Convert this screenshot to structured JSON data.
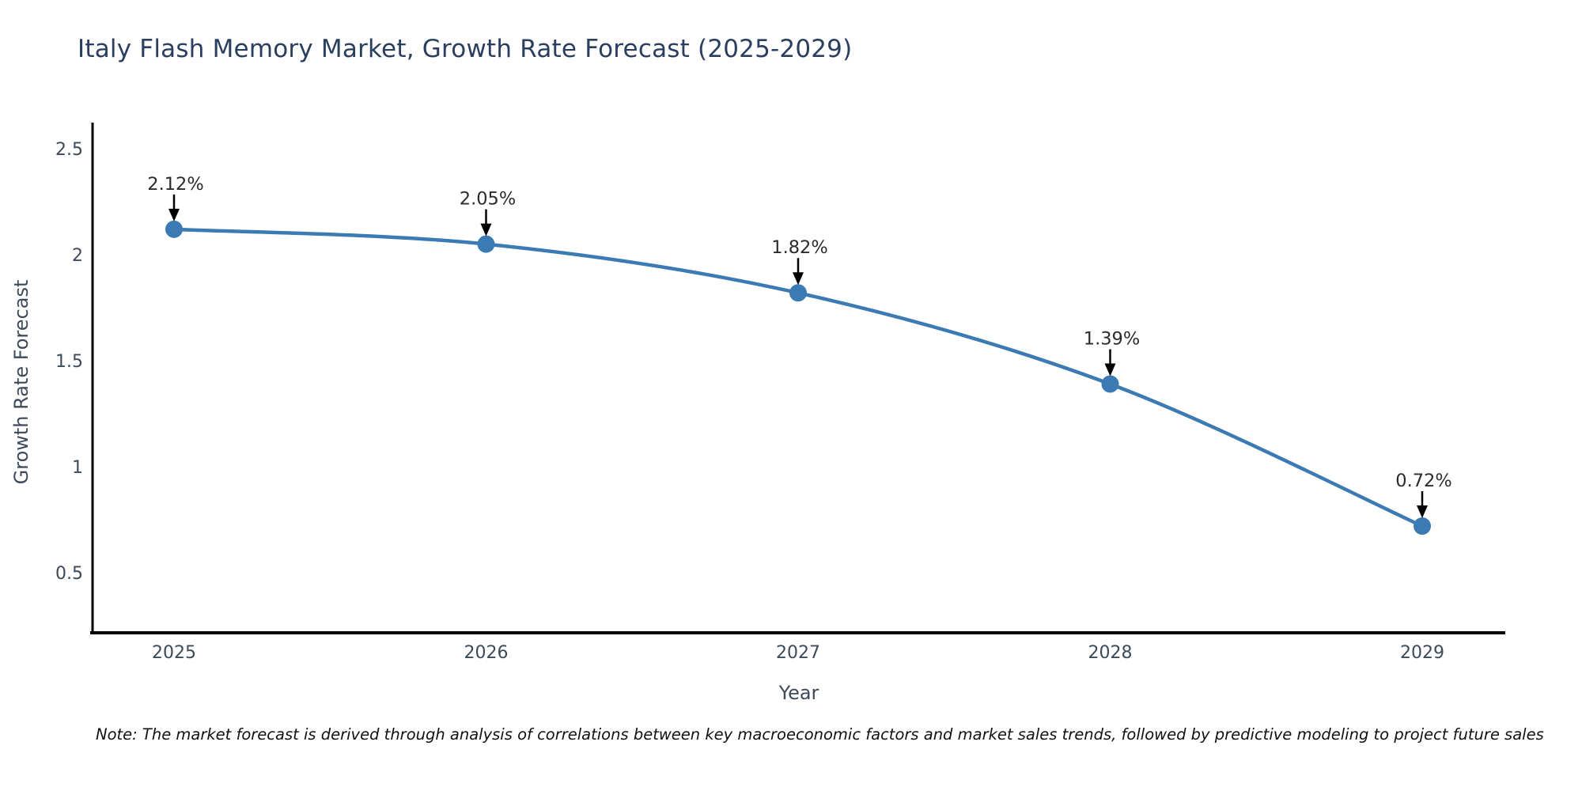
{
  "chart": {
    "title": "Italy Flash Memory Market, Growth Rate Forecast (2025-2029)",
    "xlabel": "Year",
    "ylabel": "Growth Rate Forecast",
    "note": "Note: The market forecast is derived through analysis of correlations between key macroeconomic factors and market sales trends, followed by predictive modeling to project future sales"
  },
  "chart_data": {
    "type": "line",
    "title": "Italy Flash Memory Market, Growth Rate Forecast (2025-2029)",
    "xlabel": "Year",
    "ylabel": "Growth Rate Forecast",
    "x": [
      2025,
      2026,
      2027,
      2028,
      2029
    ],
    "values": [
      2.12,
      2.05,
      1.82,
      1.39,
      0.72
    ],
    "point_labels": [
      "2.12%",
      "2.05%",
      "1.82%",
      "1.39%",
      "0.72%"
    ],
    "xticks": [
      2025,
      2026,
      2027,
      2028,
      2029
    ],
    "yticks": [
      0.5,
      1,
      1.5,
      2,
      2.5
    ],
    "xlim": [
      2024.74,
      2029.27
    ],
    "ylim": [
      0.22,
      2.62
    ],
    "grid": false,
    "legend_position": "none",
    "line_shape": "spline",
    "colors": {
      "line": "#3c7ab3",
      "marker": "#3c7ab3",
      "axis": "#000000",
      "tick_text": "#3c4a5a",
      "annotation_text": "#2b2b2b",
      "arrow": "#000000",
      "title_text": "#2a3f5f"
    }
  }
}
